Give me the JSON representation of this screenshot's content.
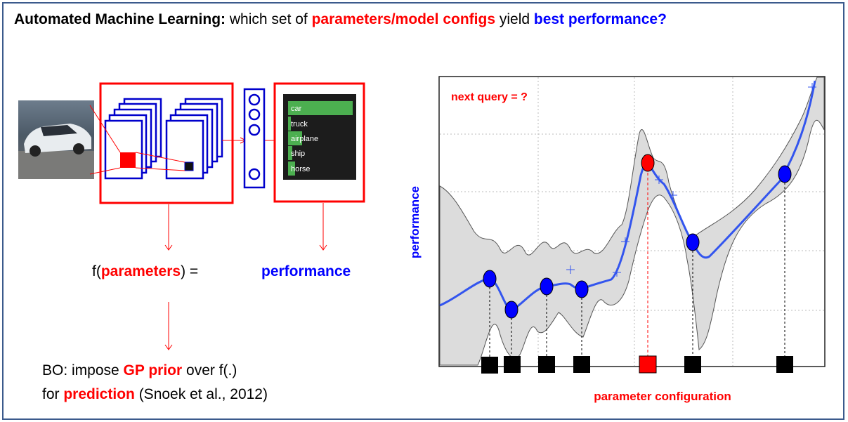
{
  "title": {
    "bold_part": "Automated Machine Learning:",
    "part2": " which set of ",
    "red_part": "parameters/model configs",
    "part4": " yield ",
    "blue_part": "best performance?"
  },
  "cnn_output_classes": [
    "car",
    "truck",
    "airplane",
    "ship",
    "horse"
  ],
  "equation": {
    "f_open": "f(",
    "param": "parameters",
    "f_close": ")  =",
    "perf": "performance"
  },
  "bo_text": {
    "line1_a": "BO: impose ",
    "line1_gp": "GP prior",
    "line1_b": " over f(.)",
    "line2_a": "for ",
    "line2_pred": "prediction",
    "line2_b": " (Snoek et al., 2012)"
  },
  "plot": {
    "ylabel": "performance",
    "xlabel": "parameter configuration",
    "next_query": "next query = ?"
  },
  "colors": {
    "red": "#ff0000",
    "blue": "#0000ff",
    "frame": "#3b5a8c",
    "band": "#dcdcdc",
    "mean": "#3355ee"
  }
}
